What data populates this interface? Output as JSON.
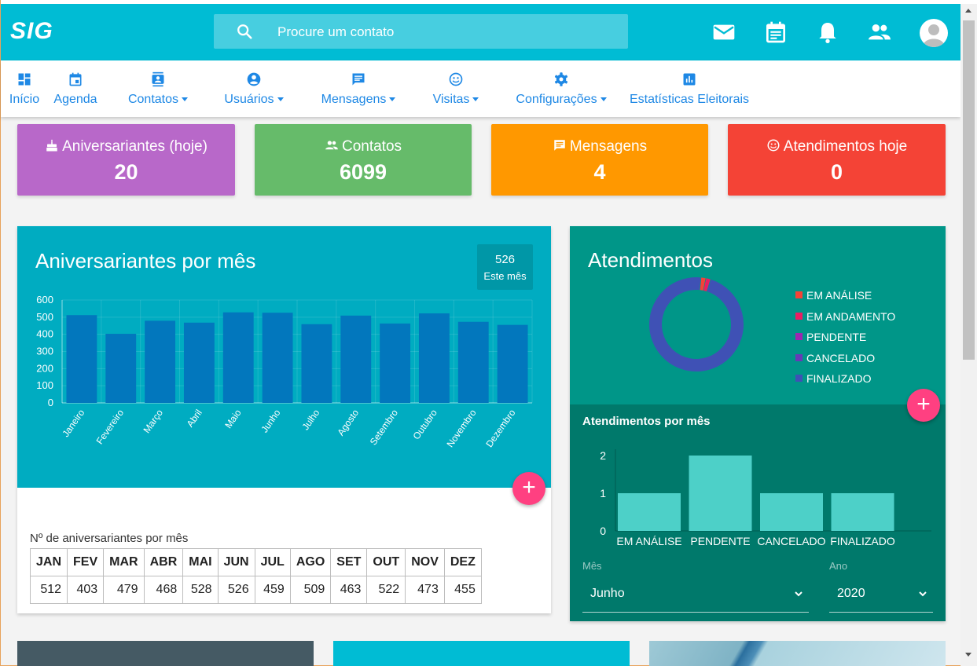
{
  "app": {
    "brand": "SIG"
  },
  "search": {
    "placeholder": "Procure um contato"
  },
  "header_icons": [
    "mail-icon",
    "calendar-icon",
    "bell-icon",
    "people-icon",
    "avatar"
  ],
  "nav": [
    {
      "label": "Início",
      "icon": "dashboard-icon",
      "dropdown": false
    },
    {
      "label": "Agenda",
      "icon": "calendar-icon",
      "dropdown": false
    },
    {
      "label": "Contatos",
      "icon": "contacts-icon",
      "dropdown": true
    },
    {
      "label": "Usuários",
      "icon": "account-icon",
      "dropdown": true
    },
    {
      "label": "Mensagens",
      "icon": "message-icon",
      "dropdown": true
    },
    {
      "label": "Visitas",
      "icon": "smile-icon",
      "dropdown": true
    },
    {
      "label": "Configurações",
      "icon": "gear-icon",
      "dropdown": true
    },
    {
      "label": "Estatísticas Eleitorais",
      "icon": "bar-chart-icon",
      "dropdown": false
    }
  ],
  "stats": [
    {
      "label": "Aniversariantes (hoje)",
      "value": "20",
      "icon": "cake-icon",
      "color": "#b868c9"
    },
    {
      "label": "Contatos",
      "value": "6099",
      "icon": "people-icon",
      "color": "#66bb6a"
    },
    {
      "label": "Mensagens",
      "value": "4",
      "icon": "message-icon",
      "color": "#ff9800"
    },
    {
      "label": "Atendimentos hoje",
      "value": "0",
      "icon": "smile-icon",
      "color": "#f44336"
    }
  ],
  "birthday_card": {
    "title": "Aniversariantes por mês",
    "badge_value": "526",
    "badge_label": "Este mês",
    "table_caption": "Nº de aniversariantes por mês",
    "table_headers": [
      "JAN",
      "FEV",
      "MAR",
      "ABR",
      "MAI",
      "JUN",
      "JUL",
      "AGO",
      "SET",
      "OUT",
      "NOV",
      "DEZ"
    ],
    "table_values": [
      "512",
      "403",
      "479",
      "468",
      "528",
      "526",
      "459",
      "509",
      "463",
      "522",
      "473",
      "455"
    ]
  },
  "attend_card": {
    "title": "Atendimentos",
    "legend": [
      {
        "label": "EM ANÁLISE",
        "color": "#f44336"
      },
      {
        "label": "EM ANDAMENTO",
        "color": "#e91e63"
      },
      {
        "label": "PENDENTE",
        "color": "#9c27b0"
      },
      {
        "label": "CANCELADO",
        "color": "#673ab7"
      },
      {
        "label": "FINALIZADO",
        "color": "#3f51b5"
      }
    ],
    "subtitle": "Atendimentos por mês",
    "month_label": "Mês",
    "month_value": "Junho",
    "year_label": "Ano",
    "year_value": "2020"
  },
  "chart_data": [
    {
      "type": "bar",
      "title": "Aniversariantes por mês",
      "categories": [
        "Janeiro",
        "Fevereiro",
        "Março",
        "Abril",
        "Maio",
        "Junho",
        "Julho",
        "Agosto",
        "Setembro",
        "Outubro",
        "Novembro",
        "Dezembro"
      ],
      "values": [
        512,
        403,
        479,
        468,
        528,
        526,
        459,
        509,
        463,
        522,
        473,
        455
      ],
      "yticks": [
        "0",
        "100",
        "200",
        "300",
        "400",
        "500",
        "600"
      ],
      "ylim": [
        0,
        600
      ],
      "bar_color": "#0277bd"
    },
    {
      "type": "pie",
      "title": "Atendimentos",
      "labels": [
        "EM ANÁLISE",
        "EM ANDAMENTO",
        "PENDENTE",
        "CANCELADO",
        "FINALIZADO"
      ],
      "values": [
        1,
        1,
        0,
        0,
        58
      ],
      "colors": [
        "#f44336",
        "#e91e63",
        "#9c27b0",
        "#673ab7",
        "#3f51b5"
      ]
    },
    {
      "type": "bar",
      "title": "Atendimentos por mês",
      "categories": [
        "EM ANÁLISE",
        "PENDENTE",
        "CANCELADO",
        "FINALIZADO"
      ],
      "values": [
        1,
        2,
        1,
        1
      ],
      "yticks": [
        "0",
        "1",
        "2"
      ],
      "ylim": [
        0,
        2
      ],
      "bar_color": "#4dd0c8"
    }
  ]
}
